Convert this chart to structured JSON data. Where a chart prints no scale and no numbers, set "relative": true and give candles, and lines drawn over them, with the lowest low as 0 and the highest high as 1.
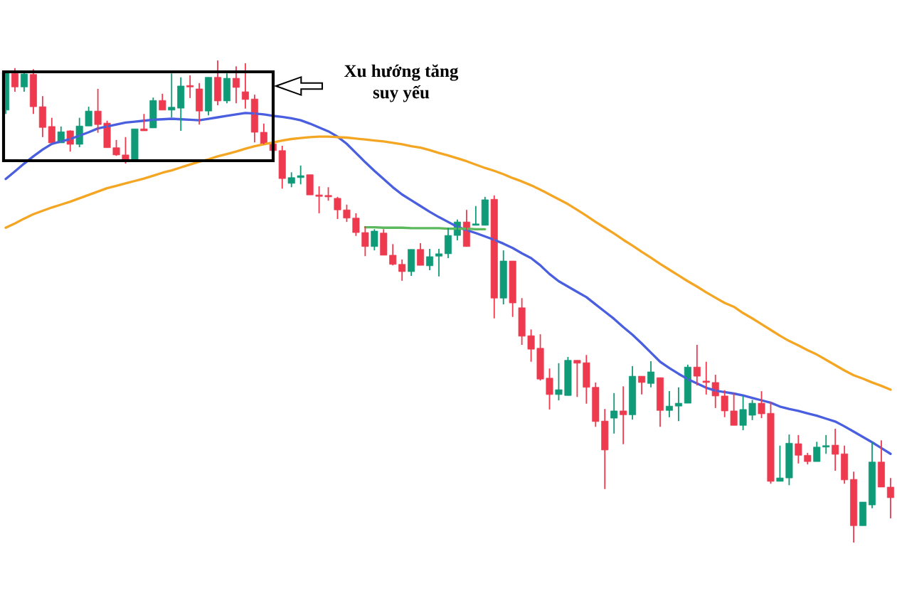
{
  "chart_data": {
    "type": "candlestick",
    "relative": true,
    "annotations": [
      "Xu hướng tăng\nsuy yếu"
    ],
    "categories": [
      null,
      null,
      null,
      null,
      null,
      null,
      null,
      null,
      null,
      null,
      null,
      null,
      null,
      null,
      null,
      null,
      null,
      null,
      null,
      null,
      null,
      null,
      null,
      null,
      null,
      null,
      null,
      null,
      null,
      null,
      null,
      null,
      null,
      null,
      null,
      null,
      null,
      null,
      null,
      null,
      null,
      null,
      null,
      null,
      null,
      null,
      null,
      null,
      null,
      null,
      null,
      null,
      null,
      null,
      null,
      null,
      null,
      null,
      null,
      null,
      null,
      null,
      null,
      null,
      null,
      null,
      null,
      null,
      null,
      null,
      null,
      null,
      null,
      null,
      null,
      null,
      null,
      null,
      null,
      null,
      null,
      null,
      null,
      null,
      null,
      null,
      null,
      null,
      null,
      null,
      null,
      null,
      null,
      null,
      null,
      null,
      null
    ],
    "ohlc": [
      [
        0.897,
        0.978,
        0.889,
        0.975
      ],
      [
        0.973,
        0.984,
        0.935,
        0.945
      ],
      [
        0.945,
        0.978,
        0.935,
        0.972
      ],
      [
        0.971,
        0.982,
        0.889,
        0.904
      ],
      [
        0.904,
        0.926,
        0.841,
        0.861
      ],
      [
        0.863,
        0.881,
        0.829,
        0.829
      ],
      [
        0.829,
        0.863,
        0.829,
        0.852
      ],
      [
        0.854,
        0.855,
        0.811,
        0.826
      ],
      [
        0.826,
        0.881,
        0.82,
        0.864
      ],
      [
        0.864,
        0.904,
        0.864,
        0.895
      ],
      [
        0.895,
        0.941,
        0.85,
        0.867
      ],
      [
        0.87,
        0.875,
        0.819,
        0.819
      ],
      [
        0.819,
        0.835,
        0.802,
        0.804
      ],
      [
        0.804,
        0.841,
        0.786,
        0.795
      ],
      [
        0.795,
        0.858,
        0.795,
        0.858
      ],
      [
        0.858,
        0.889,
        0.854,
        0.854
      ],
      [
        0.86,
        0.923,
        0.86,
        0.917
      ],
      [
        0.917,
        0.931,
        0.897,
        0.897
      ],
      [
        0.897,
        0.973,
        0.882,
        0.903
      ],
      [
        0.901,
        0.965,
        0.854,
        0.947
      ],
      [
        0.947,
        0.969,
        0.922,
        0.945
      ],
      [
        0.941,
        0.953,
        0.867,
        0.895
      ],
      [
        0.895,
        0.965,
        0.886,
        0.965
      ],
      [
        0.965,
        1,
        0.907,
        0.916
      ],
      [
        0.916,
        0.973,
        0.911,
        0.963
      ],
      [
        0.963,
        0.988,
        0.911,
        0.944
      ],
      [
        0.935,
        0.994,
        0.9,
        0.919
      ],
      [
        0.92,
        0.929,
        0.83,
        0.851
      ],
      [
        0.851,
        0.869,
        0.826,
        0.827
      ],
      [
        0.827,
        0.827,
        0.813,
        0.813
      ],
      [
        0.813,
        0.823,
        0.734,
        0.755
      ],
      [
        0.745,
        0.768,
        0.737,
        0.757
      ],
      [
        0.757,
        0.782,
        0.743,
        0.761
      ],
      [
        0.763,
        0.763,
        0.721,
        0.721
      ],
      [
        0.721,
        0.739,
        0.683,
        0.718
      ],
      [
        0.718,
        0.737,
        0.709,
        0.717
      ],
      [
        0.714,
        0.717,
        0.671,
        0.69
      ],
      [
        0.69,
        0.701,
        0.665,
        0.673
      ],
      [
        0.673,
        0.683,
        0.636,
        0.643
      ],
      [
        0.643,
        0.656,
        0.594,
        0.614
      ],
      [
        0.614,
        0.65,
        0.606,
        0.646
      ],
      [
        0.642,
        0.65,
        0.596,
        0.596
      ],
      [
        0.596,
        0.619,
        0.575,
        0.577
      ],
      [
        0.577,
        0.587,
        0.543,
        0.562
      ],
      [
        0.562,
        0.608,
        0.553,
        0.608
      ],
      [
        0.608,
        0.621,
        0.575,
        0.575
      ],
      [
        0.574,
        0.609,
        0.565,
        0.593
      ],
      [
        0.594,
        0.609,
        0.552,
        0.599
      ],
      [
        0.599,
        0.653,
        0.59,
        0.637
      ],
      [
        0.637,
        0.67,
        0.627,
        0.665
      ],
      [
        0.665,
        0.69,
        0.614,
        0.614
      ],
      [
        0.658,
        0.698,
        0.658,
        0.659
      ],
      [
        0.658,
        0.717,
        0.658,
        0.711
      ],
      [
        0.712,
        0.72,
        0.465,
        0.507
      ],
      [
        0.507,
        0.606,
        0.494,
        0.584
      ],
      [
        0.584,
        0.584,
        0.468,
        0.497
      ],
      [
        0.487,
        0.507,
        0.41,
        0.428
      ],
      [
        0.429,
        0.442,
        0.375,
        0.401
      ],
      [
        0.403,
        0.432,
        0.336,
        0.339
      ],
      [
        0.341,
        0.361,
        0.276,
        0.307
      ],
      [
        0.307,
        0.372,
        0.295,
        0.317
      ],
      [
        0.305,
        0.385,
        0.305,
        0.378
      ],
      [
        0.378,
        0.378,
        0.302,
        0.372
      ],
      [
        0.373,
        0.389,
        0.288,
        0.322
      ],
      [
        0.322,
        0.332,
        0.24,
        0.251
      ],
      [
        0.252,
        0.277,
        0.111,
        0.192
      ],
      [
        0.258,
        0.31,
        0.226,
        0.273
      ],
      [
        0.273,
        0.324,
        0.204,
        0.265
      ],
      [
        0.265,
        0.366,
        0.255,
        0.345
      ],
      [
        0.345,
        0.345,
        0.307,
        0.332
      ],
      [
        0.33,
        0.376,
        0.322,
        0.354
      ],
      [
        0.342,
        0.342,
        0.24,
        0.274
      ],
      [
        0.274,
        0.314,
        0.26,
        0.283
      ],
      [
        0.283,
        0.322,
        0.252,
        0.289
      ],
      [
        0.289,
        0.369,
        0.289,
        0.364
      ],
      [
        0.364,
        0.41,
        0.326,
        0.345
      ],
      [
        0.333,
        0.375,
        0.307,
        0.332
      ],
      [
        0.332,
        0.348,
        0.279,
        0.304
      ],
      [
        0.304,
        0.316,
        0.26,
        0.273
      ],
      [
        0.273,
        0.31,
        0.243,
        0.243
      ],
      [
        0.243,
        0.304,
        0.233,
        0.276
      ],
      [
        0.264,
        0.296,
        0.254,
        0.289
      ],
      [
        0.289,
        0.314,
        0.258,
        0.267
      ],
      [
        0.268,
        0.292,
        0.122,
        0.127
      ],
      [
        0.127,
        0.201,
        0.127,
        0.134
      ],
      [
        0.134,
        0.224,
        0.119,
        0.206
      ],
      [
        0.205,
        0.223,
        0.164,
        0.181
      ],
      [
        0.181,
        0.186,
        0.162,
        0.168
      ],
      [
        0.168,
        0.209,
        0.168,
        0.198
      ],
      [
        0.198,
        0.223,
        0.184,
        0.199
      ],
      [
        0.202,
        0.236,
        0.149,
        0.183
      ],
      [
        0.184,
        0.201,
        0.122,
        0.13
      ],
      [
        0.131,
        0.147,
        0,
        0.035
      ],
      [
        0.035,
        0.084,
        0.035,
        0.084
      ],
      [
        0.078,
        0.208,
        0.071,
        0.167
      ],
      [
        0.167,
        0.212,
        0.115,
        0.115
      ],
      [
        0.115,
        0.134,
        0.05,
        0.093
      ]
    ],
    "colors": [
      "#0f9a78",
      "#ee3a4f",
      "#0f9a78",
      "#ee3a4f",
      "#ee3a4f",
      "#ee3a4f",
      "#0f9a78",
      "#ee3a4f",
      "#0f9a78",
      "#0f9a78",
      "#ee3a4f",
      "#ee3a4f",
      "#ee3a4f",
      "#ee3a4f",
      "#0f9a78",
      "#ee3a4f",
      "#0f9a78",
      "#ee3a4f",
      "#0f9a78",
      "#0f9a78",
      "#ee3a4f",
      "#ee3a4f",
      "#0f9a78",
      "#ee3a4f",
      "#0f9a78",
      "#ee3a4f",
      "#ee3a4f",
      "#ee3a4f",
      "#ee3a4f",
      "#ee3a4f",
      "#ee3a4f",
      "#0f9a78",
      "#0f9a78",
      "#ee3a4f",
      "#ee3a4f",
      "#ee3a4f",
      "#ee3a4f",
      "#ee3a4f",
      "#ee3a4f",
      "#ee3a4f",
      "#0f9a78",
      "#ee3a4f",
      "#ee3a4f",
      "#ee3a4f",
      "#0f9a78",
      "#ee3a4f",
      "#0f9a78",
      "#0f9a78",
      "#0f9a78",
      "#0f9a78",
      "#ee3a4f",
      "#0f9a78",
      "#0f9a78",
      "#ee3a4f",
      "#0f9a78",
      "#ee3a4f",
      "#ee3a4f",
      "#ee3a4f",
      "#ee3a4f",
      "#ee3a4f",
      "#0f9a78",
      "#0f9a78",
      "#ee3a4f",
      "#ee3a4f",
      "#ee3a4f",
      "#ee3a4f",
      "#0f9a78",
      "#ee3a4f",
      "#0f9a78",
      "#ee3a4f",
      "#0f9a78",
      "#ee3a4f",
      "#0f9a78",
      "#0f9a78",
      "#0f9a78",
      "#ee3a4f",
      "#ee3a4f",
      "#ee3a4f",
      "#ee3a4f",
      "#ee3a4f",
      "#0f9a78",
      "#0f9a78",
      "#ee3a4f",
      "#ee3a4f",
      "#0f9a78",
      "#0f9a78",
      "#ee3a4f",
      "#ee3a4f",
      "#0f9a78",
      "#0f9a78",
      "#ee3a4f",
      "#ee3a4f",
      "#ee3a4f",
      "#0f9a78",
      "#0f9a78",
      "#ee3a4f",
      "#ee3a4f"
    ],
    "series": [
      {
        "type": "line",
        "color": "#4a5fe0",
        "values": [
          0.754,
          0.77,
          0.786,
          0.801,
          0.815,
          0.827,
          0.832,
          0.837,
          0.844,
          0.851,
          0.859,
          0.863,
          0.867,
          0.871,
          0.873,
          0.875,
          0.877,
          0.878,
          0.879,
          0.878,
          0.877,
          0.876,
          0.879,
          0.882,
          0.885,
          0.888,
          0.891,
          0.89,
          0.888,
          0.885,
          0.883,
          0.88,
          0.876,
          0.869,
          0.861,
          0.853,
          0.842,
          0.827,
          0.808,
          0.789,
          0.771,
          0.754,
          0.737,
          0.722,
          0.71,
          0.698,
          0.686,
          0.675,
          0.665,
          0.655,
          0.648,
          0.642,
          0.635,
          0.628,
          0.62,
          0.611,
          0.6,
          0.59,
          0.575,
          0.557,
          0.542,
          0.531,
          0.52,
          0.509,
          0.494,
          0.479,
          0.464,
          0.447,
          0.431,
          0.413,
          0.394,
          0.375,
          0.362,
          0.35,
          0.339,
          0.33,
          0.321,
          0.315,
          0.312,
          0.309,
          0.305,
          0.3,
          0.295,
          0.29,
          0.282,
          0.277,
          0.273,
          0.268,
          0.263,
          0.257,
          0.251,
          0.241,
          0.23,
          0.219,
          0.208,
          0.196,
          0.184
        ]
      },
      {
        "type": "line",
        "color": "#f4a623",
        "values": [
          0.653,
          0.662,
          0.672,
          0.681,
          0.688,
          0.695,
          0.701,
          0.707,
          0.714,
          0.721,
          0.728,
          0.735,
          0.74,
          0.745,
          0.75,
          0.755,
          0.761,
          0.767,
          0.772,
          0.778,
          0.784,
          0.79,
          0.795,
          0.801,
          0.806,
          0.811,
          0.817,
          0.822,
          0.826,
          0.83,
          0.834,
          0.837,
          0.839,
          0.841,
          0.842,
          0.842,
          0.841,
          0.84,
          0.838,
          0.836,
          0.834,
          0.832,
          0.829,
          0.826,
          0.822,
          0.819,
          0.814,
          0.808,
          0.803,
          0.797,
          0.791,
          0.784,
          0.777,
          0.771,
          0.764,
          0.756,
          0.749,
          0.741,
          0.732,
          0.722,
          0.712,
          0.702,
          0.69,
          0.678,
          0.665,
          0.653,
          0.641,
          0.628,
          0.616,
          0.603,
          0.591,
          0.578,
          0.566,
          0.554,
          0.542,
          0.531,
          0.519,
          0.508,
          0.497,
          0.489,
          0.476,
          0.465,
          0.453,
          0.441,
          0.429,
          0.418,
          0.409,
          0.399,
          0.39,
          0.379,
          0.368,
          0.357,
          0.347,
          0.34,
          0.332,
          0.325,
          0.317
        ]
      },
      {
        "type": "line",
        "color": "#5cb85c",
        "values": [
          null,
          null,
          null,
          null,
          null,
          null,
          null,
          null,
          null,
          null,
          null,
          null,
          null,
          null,
          null,
          null,
          null,
          null,
          null,
          null,
          null,
          null,
          null,
          null,
          null,
          null,
          null,
          null,
          null,
          null,
          null,
          null,
          null,
          null,
          null,
          null,
          null,
          null,
          null,
          0.654,
          0.654,
          0.653,
          0.653,
          0.653,
          0.652,
          0.652,
          0.652,
          0.652,
          0.651,
          0.651,
          0.651,
          0.65,
          0.65,
          null,
          null,
          null,
          null,
          null,
          null,
          null,
          null,
          null,
          null,
          null,
          null,
          null,
          null,
          null,
          null,
          null,
          null,
          null,
          null,
          null,
          null,
          null,
          null,
          null,
          null,
          null,
          null,
          null,
          null,
          null,
          null,
          null,
          null,
          null,
          null,
          null,
          null,
          null,
          null,
          null,
          null,
          null,
          null
        ]
      }
    ]
  }
}
